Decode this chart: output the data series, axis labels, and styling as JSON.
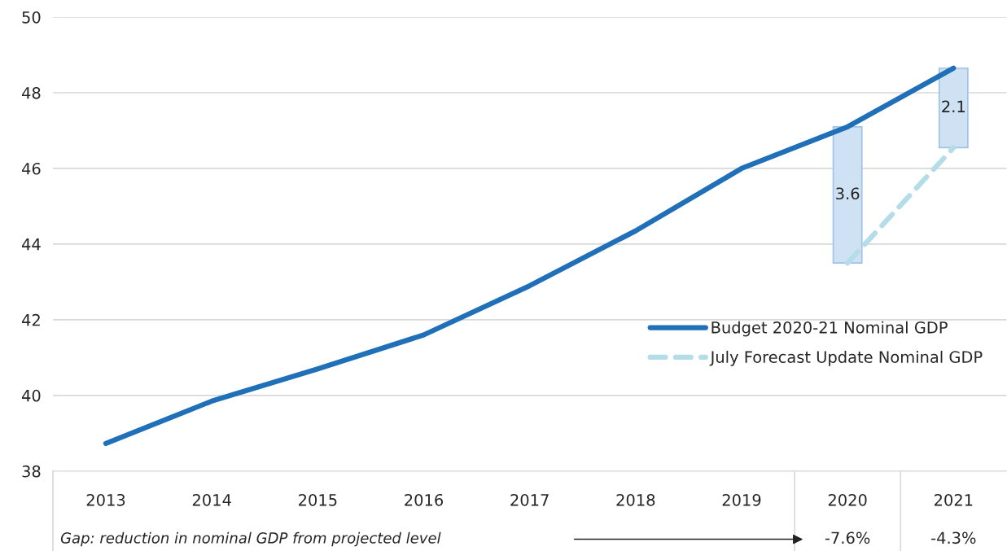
{
  "chart_data": {
    "type": "line",
    "categories": [
      "2013",
      "2014",
      "2015",
      "2016",
      "2017",
      "2018",
      "2019",
      "2020",
      "2021"
    ],
    "series": [
      {
        "type": "bar",
        "color": "#cfe2f3",
        "values": [
          null,
          null,
          null,
          null,
          null,
          null,
          null,
          3.6,
          2.1
        ],
        "base": [
          null,
          null,
          null,
          null,
          null,
          null,
          null,
          43.5,
          46.55
        ],
        "value_labels": [
          null,
          null,
          null,
          null,
          null,
          null,
          null,
          "3.6",
          "2.1"
        ]
      },
      {
        "name": "Budget 2020-21 Nominal GDP",
        "color": "#1f70b8",
        "line_style": "solid",
        "values": [
          38.73,
          39.85,
          40.7,
          41.6,
          42.9,
          44.35,
          46.0,
          47.1,
          48.65
        ]
      },
      {
        "name": "July Forecast Update Nominal GDP",
        "color": "#b4dde8",
        "line_style": "dashed",
        "values": [
          null,
          null,
          null,
          null,
          null,
          null,
          null,
          43.5,
          46.55
        ]
      }
    ],
    "ylim": [
      38,
      50
    ],
    "yticks": [
      38,
      40,
      42,
      44,
      46,
      48,
      50
    ],
    "grid": "y",
    "legend": "bottom right",
    "marker": "none",
    "annotations": [
      "Gap: reduction in nominal GDP from projected level",
      "-7.6%",
      "-4.3%"
    ]
  }
}
